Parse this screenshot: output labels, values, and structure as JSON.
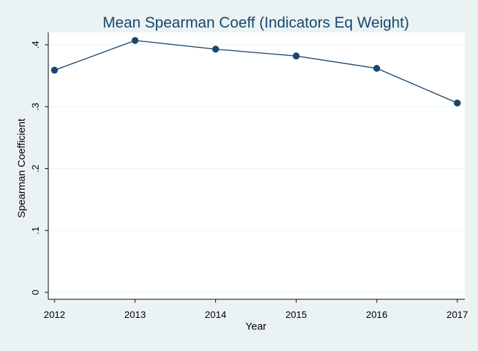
{
  "chart_data": {
    "type": "line",
    "title": "Mean Spearman Coeff (Indicators Eq Weight)",
    "xlabel": "Year",
    "ylabel": "Spearman Coefficient",
    "x": [
      2012,
      2013,
      2014,
      2015,
      2016,
      2017
    ],
    "series": [
      {
        "values": [
          0.359,
          0.407,
          0.393,
          0.382,
          0.362,
          0.306
        ]
      }
    ],
    "xticks": [
      "2012",
      "2013",
      "2014",
      "2015",
      "2016",
      "2017"
    ],
    "yticks": [
      "0",
      ".1",
      ".2",
      ".3",
      ".4"
    ],
    "ylim": [
      0,
      0.42
    ],
    "grid": true,
    "colors": {
      "line": "#1a476f",
      "marker": "#1a476f",
      "grid": "#eaf2f3",
      "background": "#eaf2f3",
      "plot_background": "#ffffff"
    }
  }
}
